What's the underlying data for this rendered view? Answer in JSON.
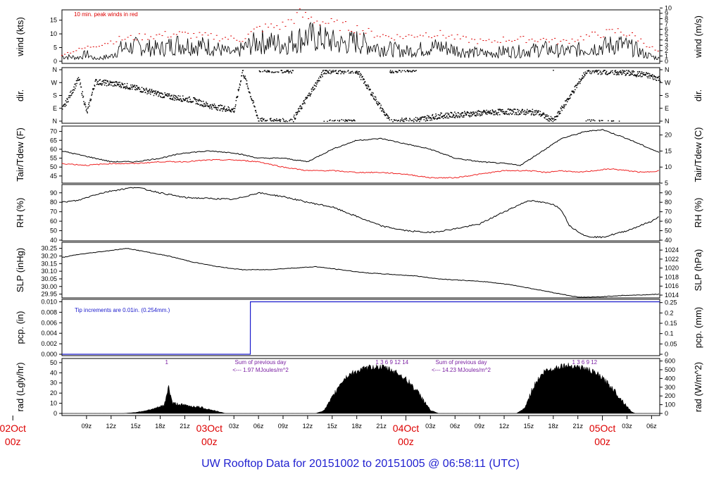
{
  "title": "UW Rooftop Data for 20151002  to  20151005 @ 06:58:11  (UTC)",
  "colors": {
    "title": "#1f1fd0",
    "date": "#dd0000",
    "peak": "#dd0000",
    "tdew": "#ee2222",
    "pcp": "#1a1acc",
    "annot": "#7a1fa2",
    "ink": "#000000"
  },
  "x_axis": {
    "hour_ticks": [
      "09z",
      "12z",
      "15z",
      "18z",
      "21z",
      "03z",
      "06z",
      "09z",
      "12z",
      "15z",
      "18z",
      "21z",
      "03z",
      "06z",
      "09z",
      "12z",
      "15z",
      "18z",
      "21z",
      "03z",
      "06z"
    ],
    "date_labels": [
      {
        "day": "02Oct",
        "hour": "00z"
      },
      {
        "day": "03Oct",
        "hour": "00z"
      },
      {
        "day": "04Oct",
        "hour": "00z"
      },
      {
        "day": "05Oct",
        "hour": "00z"
      }
    ],
    "start_hour": 6,
    "end_hour": 79
  },
  "panels": {
    "wind": {
      "left_label": "wind (kts)",
      "right_label": "wind (m/s)",
      "left_ticks": [
        "0",
        "5",
        "10",
        "15"
      ],
      "right_ticks": [
        "0",
        "1",
        "2",
        "3",
        "4",
        "5",
        "6",
        "7",
        "8",
        "9",
        "10"
      ],
      "note": "10 min. peak winds in red"
    },
    "dir": {
      "left_label": "dir.",
      "right_label": "dir.",
      "ticks": [
        "N",
        "E",
        "S",
        "W",
        "N"
      ]
    },
    "temp": {
      "left_label": "Tair/Tdew (F)",
      "right_label": "Tair/Tdew (C)",
      "left_ticks": [
        "45",
        "50",
        "55",
        "60",
        "65",
        "70"
      ],
      "right_ticks": [
        "5",
        "10",
        "15",
        "20"
      ]
    },
    "rh": {
      "left_label": "RH (%)",
      "right_label": "RH (%)",
      "ticks": [
        "40",
        "50",
        "60",
        "70",
        "80",
        "90"
      ]
    },
    "slp": {
      "left_label": "SLP (inHg)",
      "right_label": "SLP (hPa)",
      "left_ticks": [
        "29.95",
        "30.00",
        "30.05",
        "30.10",
        "30.15",
        "30.20",
        "30.25"
      ],
      "right_ticks": [
        "1014",
        "1016",
        "1018",
        "1020",
        "1022",
        "1024"
      ]
    },
    "pcp": {
      "left_label": "pcp. (in)",
      "right_label": "pcp. (mm)",
      "left_ticks": [
        "0.000",
        "0.002",
        "0.004",
        "0.006",
        "0.008",
        "0.010"
      ],
      "right_ticks": [
        "0",
        "0.05",
        "0.1",
        "0.15",
        "0.2",
        "0.25"
      ],
      "note": "Tip increments are 0.01in. (0.254mm.)"
    },
    "rad": {
      "left_label": "rad (Lgly/hr)",
      "right_label": "rad (W/m^2)",
      "left_ticks": [
        "0",
        "10",
        "20",
        "30",
        "40",
        "50"
      ],
      "right_ticks": [
        "0",
        "100",
        "200",
        "300",
        "400",
        "500",
        "600"
      ],
      "annotations": [
        {
          "line1": "Sum of previous day",
          "line2": "<--- 1.97 MJoules/m^2"
        },
        {
          "line1": "Sum of previous day",
          "line2": "<--- 14.23 MJoules/m^2"
        }
      ],
      "hour_marks": [
        {
          "text": "1",
          "hour": 18.6
        },
        {
          "text": "1    3    6    9    12    14",
          "hour": 44.3
        },
        {
          "text": "1    3    6    9    12",
          "hour": 68.3
        }
      ]
    }
  },
  "chart_data": {
    "type": "line",
    "x_unit": "hours since 2015-10-02 00z",
    "series": [
      {
        "key": "wind",
        "points": [
          [
            6,
            2
          ],
          [
            8,
            1.5
          ],
          [
            9,
            3
          ],
          [
            10,
            1
          ],
          [
            12,
            2
          ],
          [
            13,
            5
          ],
          [
            15,
            6
          ],
          [
            18,
            5
          ],
          [
            20,
            7
          ],
          [
            24,
            6
          ],
          [
            27,
            3
          ],
          [
            28,
            5
          ],
          [
            30,
            8
          ],
          [
            33,
            7
          ],
          [
            36,
            10
          ],
          [
            38,
            9
          ],
          [
            40,
            7
          ],
          [
            42,
            8
          ],
          [
            44,
            6
          ],
          [
            46,
            5
          ],
          [
            48,
            4
          ],
          [
            50,
            5
          ],
          [
            52,
            6
          ],
          [
            55,
            4
          ],
          [
            58,
            3
          ],
          [
            60,
            4
          ],
          [
            62,
            4
          ],
          [
            65,
            5
          ],
          [
            67,
            4
          ],
          [
            70,
            5
          ],
          [
            72,
            6
          ],
          [
            74,
            7
          ],
          [
            76,
            5
          ],
          [
            77,
            3
          ],
          [
            79,
            1
          ]
        ]
      },
      {
        "key": "peak",
        "points": [
          [
            6,
            2.5
          ],
          [
            9,
            5
          ],
          [
            13,
            8
          ],
          [
            16,
            9
          ],
          [
            20,
            10
          ],
          [
            24,
            9
          ],
          [
            28,
            8
          ],
          [
            30,
            12
          ],
          [
            33,
            13
          ],
          [
            35,
            17
          ],
          [
            37,
            15
          ],
          [
            40,
            13
          ],
          [
            42,
            12
          ],
          [
            44,
            10
          ],
          [
            46,
            9
          ],
          [
            48,
            9
          ],
          [
            50,
            10
          ],
          [
            52,
            10
          ],
          [
            55,
            8
          ],
          [
            58,
            7
          ],
          [
            60,
            8
          ],
          [
            62,
            8
          ],
          [
            65,
            8
          ],
          [
            67,
            7
          ],
          [
            70,
            9
          ],
          [
            72,
            10
          ],
          [
            74,
            11
          ],
          [
            76,
            9
          ],
          [
            78,
            5
          ],
          [
            79,
            3
          ]
        ]
      },
      {
        "key": "dir",
        "points": [
          [
            6,
            85
          ],
          [
            8,
            300
          ],
          [
            9,
            60
          ],
          [
            10,
            280
          ],
          [
            13,
            260
          ],
          [
            16,
            220
          ],
          [
            19,
            175
          ],
          [
            22,
            150
          ],
          [
            24,
            110
          ],
          [
            25,
            100
          ],
          [
            27,
            80
          ],
          [
            28,
            355
          ],
          [
            30,
            5
          ],
          [
            34,
            0
          ],
          [
            38,
            355
          ],
          [
            42,
            355
          ],
          [
            46,
            0
          ],
          [
            49,
            10
          ],
          [
            52,
            40
          ],
          [
            56,
            55
          ],
          [
            60,
            70
          ],
          [
            64,
            65
          ],
          [
            66,
            5
          ],
          [
            70,
            355
          ],
          [
            74,
            345
          ],
          [
            77,
            330
          ],
          [
            79,
            300
          ]
        ]
      },
      {
        "key": "tair",
        "points": [
          [
            6,
            59
          ],
          [
            7,
            58
          ],
          [
            9,
            56
          ],
          [
            12,
            53
          ],
          [
            15,
            53
          ],
          [
            18,
            55
          ],
          [
            21,
            58
          ],
          [
            24,
            59
          ],
          [
            27,
            58
          ],
          [
            30,
            55
          ],
          [
            33,
            55
          ],
          [
            36,
            53
          ],
          [
            39,
            60
          ],
          [
            42,
            65
          ],
          [
            45,
            66
          ],
          [
            48,
            63
          ],
          [
            51,
            60
          ],
          [
            54,
            55
          ],
          [
            57,
            53
          ],
          [
            60,
            52
          ],
          [
            62,
            51
          ],
          [
            64,
            57
          ],
          [
            67,
            66
          ],
          [
            70,
            70
          ],
          [
            72,
            71
          ],
          [
            75,
            66
          ],
          [
            78,
            60
          ],
          [
            79,
            58
          ]
        ]
      },
      {
        "key": "tdew",
        "points": [
          [
            6,
            52
          ],
          [
            9,
            51
          ],
          [
            12,
            52
          ],
          [
            15,
            52
          ],
          [
            18,
            53
          ],
          [
            21,
            53
          ],
          [
            24,
            54
          ],
          [
            27,
            54
          ],
          [
            30,
            53
          ],
          [
            33,
            50
          ],
          [
            36,
            48
          ],
          [
            39,
            48
          ],
          [
            42,
            47
          ],
          [
            45,
            47
          ],
          [
            48,
            46
          ],
          [
            51,
            44
          ],
          [
            54,
            44
          ],
          [
            57,
            46
          ],
          [
            60,
            48
          ],
          [
            63,
            48
          ],
          [
            65,
            47
          ],
          [
            67,
            48
          ],
          [
            69,
            47
          ],
          [
            71,
            48
          ],
          [
            73,
            49
          ],
          [
            75,
            48
          ],
          [
            77,
            47
          ],
          [
            79,
            48
          ]
        ]
      },
      {
        "key": "rh",
        "points": [
          [
            6,
            80
          ],
          [
            8,
            82
          ],
          [
            10,
            88
          ],
          [
            12,
            92
          ],
          [
            15,
            96
          ],
          [
            18,
            90
          ],
          [
            21,
            85
          ],
          [
            24,
            84
          ],
          [
            27,
            83
          ],
          [
            30,
            90
          ],
          [
            33,
            86
          ],
          [
            36,
            80
          ],
          [
            39,
            75
          ],
          [
            42,
            65
          ],
          [
            45,
            55
          ],
          [
            48,
            50
          ],
          [
            51,
            48
          ],
          [
            54,
            52
          ],
          [
            57,
            57
          ],
          [
            60,
            70
          ],
          [
            63,
            82
          ],
          [
            66,
            78
          ],
          [
            67,
            72
          ],
          [
            68,
            55
          ],
          [
            70,
            44
          ],
          [
            72,
            43
          ],
          [
            75,
            50
          ],
          [
            78,
            60
          ],
          [
            79,
            65
          ]
        ]
      },
      {
        "key": "slp",
        "points": [
          [
            6,
            30.19
          ],
          [
            8,
            30.21
          ],
          [
            11,
            30.23
          ],
          [
            14,
            30.25
          ],
          [
            16,
            30.23
          ],
          [
            19,
            30.2
          ],
          [
            22,
            30.16
          ],
          [
            25,
            30.13
          ],
          [
            28,
            30.11
          ],
          [
            31,
            30.11
          ],
          [
            34,
            30.12
          ],
          [
            37,
            30.13
          ],
          [
            40,
            30.11
          ],
          [
            43,
            30.09
          ],
          [
            46,
            30.08
          ],
          [
            49,
            30.07
          ],
          [
            52,
            30.05
          ],
          [
            55,
            30.04
          ],
          [
            58,
            30.03
          ],
          [
            61,
            30.01
          ],
          [
            64,
            29.98
          ],
          [
            67,
            29.95
          ],
          [
            69,
            29.93
          ],
          [
            71,
            29.93
          ],
          [
            74,
            29.94
          ],
          [
            77,
            29.945
          ],
          [
            79,
            29.95
          ]
        ]
      },
      {
        "key": "pcp",
        "points": [
          [
            6,
            0
          ],
          [
            29,
            0
          ],
          [
            29.01,
            0.01
          ],
          [
            79,
            0.01
          ]
        ]
      },
      {
        "key": "rad",
        "points": [
          [
            6,
            0
          ],
          [
            13.5,
            0
          ],
          [
            15,
            1
          ],
          [
            17,
            4
          ],
          [
            18.5,
            8
          ],
          [
            19,
            27
          ],
          [
            19.5,
            10
          ],
          [
            21,
            8
          ],
          [
            23,
            6
          ],
          [
            25,
            2
          ],
          [
            26,
            0
          ],
          [
            37,
            0
          ],
          [
            38,
            3
          ],
          [
            39,
            15
          ],
          [
            40,
            30
          ],
          [
            41,
            38
          ],
          [
            42.5,
            43
          ],
          [
            44,
            46
          ],
          [
            45.5,
            45
          ],
          [
            47,
            40
          ],
          [
            48.5,
            30
          ],
          [
            50,
            15
          ],
          [
            51,
            3
          ],
          [
            52,
            0
          ],
          [
            61.5,
            0
          ],
          [
            62.5,
            5
          ],
          [
            63,
            15
          ],
          [
            63.5,
            25
          ],
          [
            64,
            32
          ],
          [
            65,
            42
          ],
          [
            66,
            44
          ],
          [
            67,
            47
          ],
          [
            68.5,
            47
          ],
          [
            70,
            44
          ],
          [
            71.5,
            38
          ],
          [
            73,
            27
          ],
          [
            74.5,
            12
          ],
          [
            75.5,
            2
          ],
          [
            76,
            0
          ],
          [
            79,
            0
          ]
        ]
      }
    ]
  }
}
